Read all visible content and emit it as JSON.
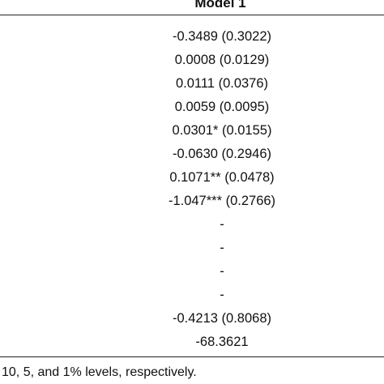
{
  "table": {
    "header": "Model 1",
    "rows": [
      "-0.3489 (0.3022)",
      "0.0008 (0.0129)",
      "0.0111 (0.0376)",
      "0.0059 (0.0095)",
      "0.0301* (0.0155)",
      "-0.0630 (0.2946)",
      "0.1071** (0.0478)",
      "-1.047*** (0.2766)",
      "-",
      "-",
      "-",
      "-",
      "-0.4213 (0.8068)",
      "-68.3621"
    ]
  },
  "footnote": "10, 5, and 1% levels, respectively."
}
